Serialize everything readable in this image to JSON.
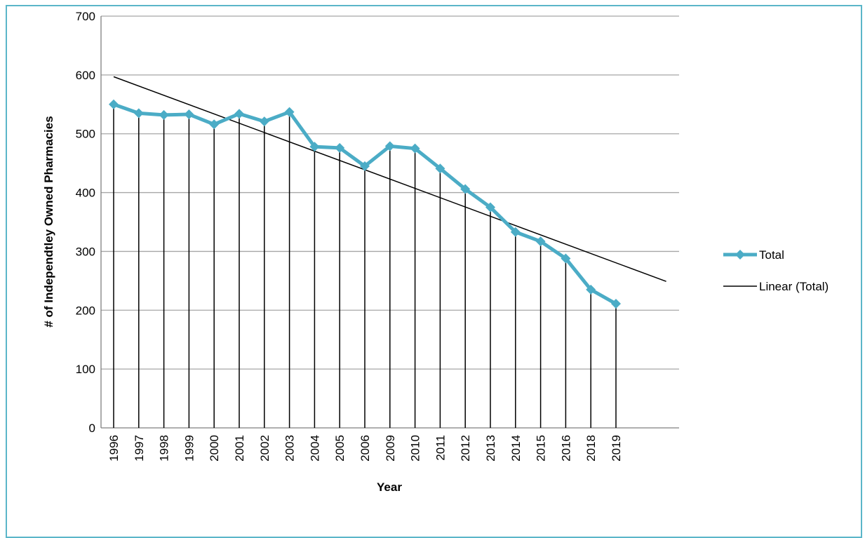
{
  "chart_data": {
    "type": "line",
    "xlabel": "Year",
    "ylabel": "# of Independtley Owned Pharmacies",
    "ylim": [
      0,
      700
    ],
    "yticks": [
      0,
      100,
      200,
      300,
      400,
      500,
      600,
      700
    ],
    "grid": "horizontal",
    "legend_position": "right",
    "categories": [
      "1996",
      "1997",
      "1998",
      "1999",
      "2000",
      "2001",
      "2002",
      "2003",
      "2004",
      "2005",
      "2006",
      "2009",
      "2010",
      "2011",
      "2012",
      "2013",
      "2014",
      "2015",
      "2016",
      "2018",
      "2019"
    ],
    "series": [
      {
        "name": "Total",
        "color": "#4bacc6",
        "marker": "diamond",
        "drop_lines": true,
        "values": [
          550,
          535,
          532,
          533,
          516,
          534,
          521,
          537,
          478,
          476,
          445,
          479,
          475,
          441,
          406,
          375,
          333,
          317,
          288,
          235,
          211
        ]
      },
      {
        "name": "Linear (Total)",
        "color": "#000000",
        "type": "trendline",
        "start": 597,
        "end": 249
      }
    ]
  }
}
